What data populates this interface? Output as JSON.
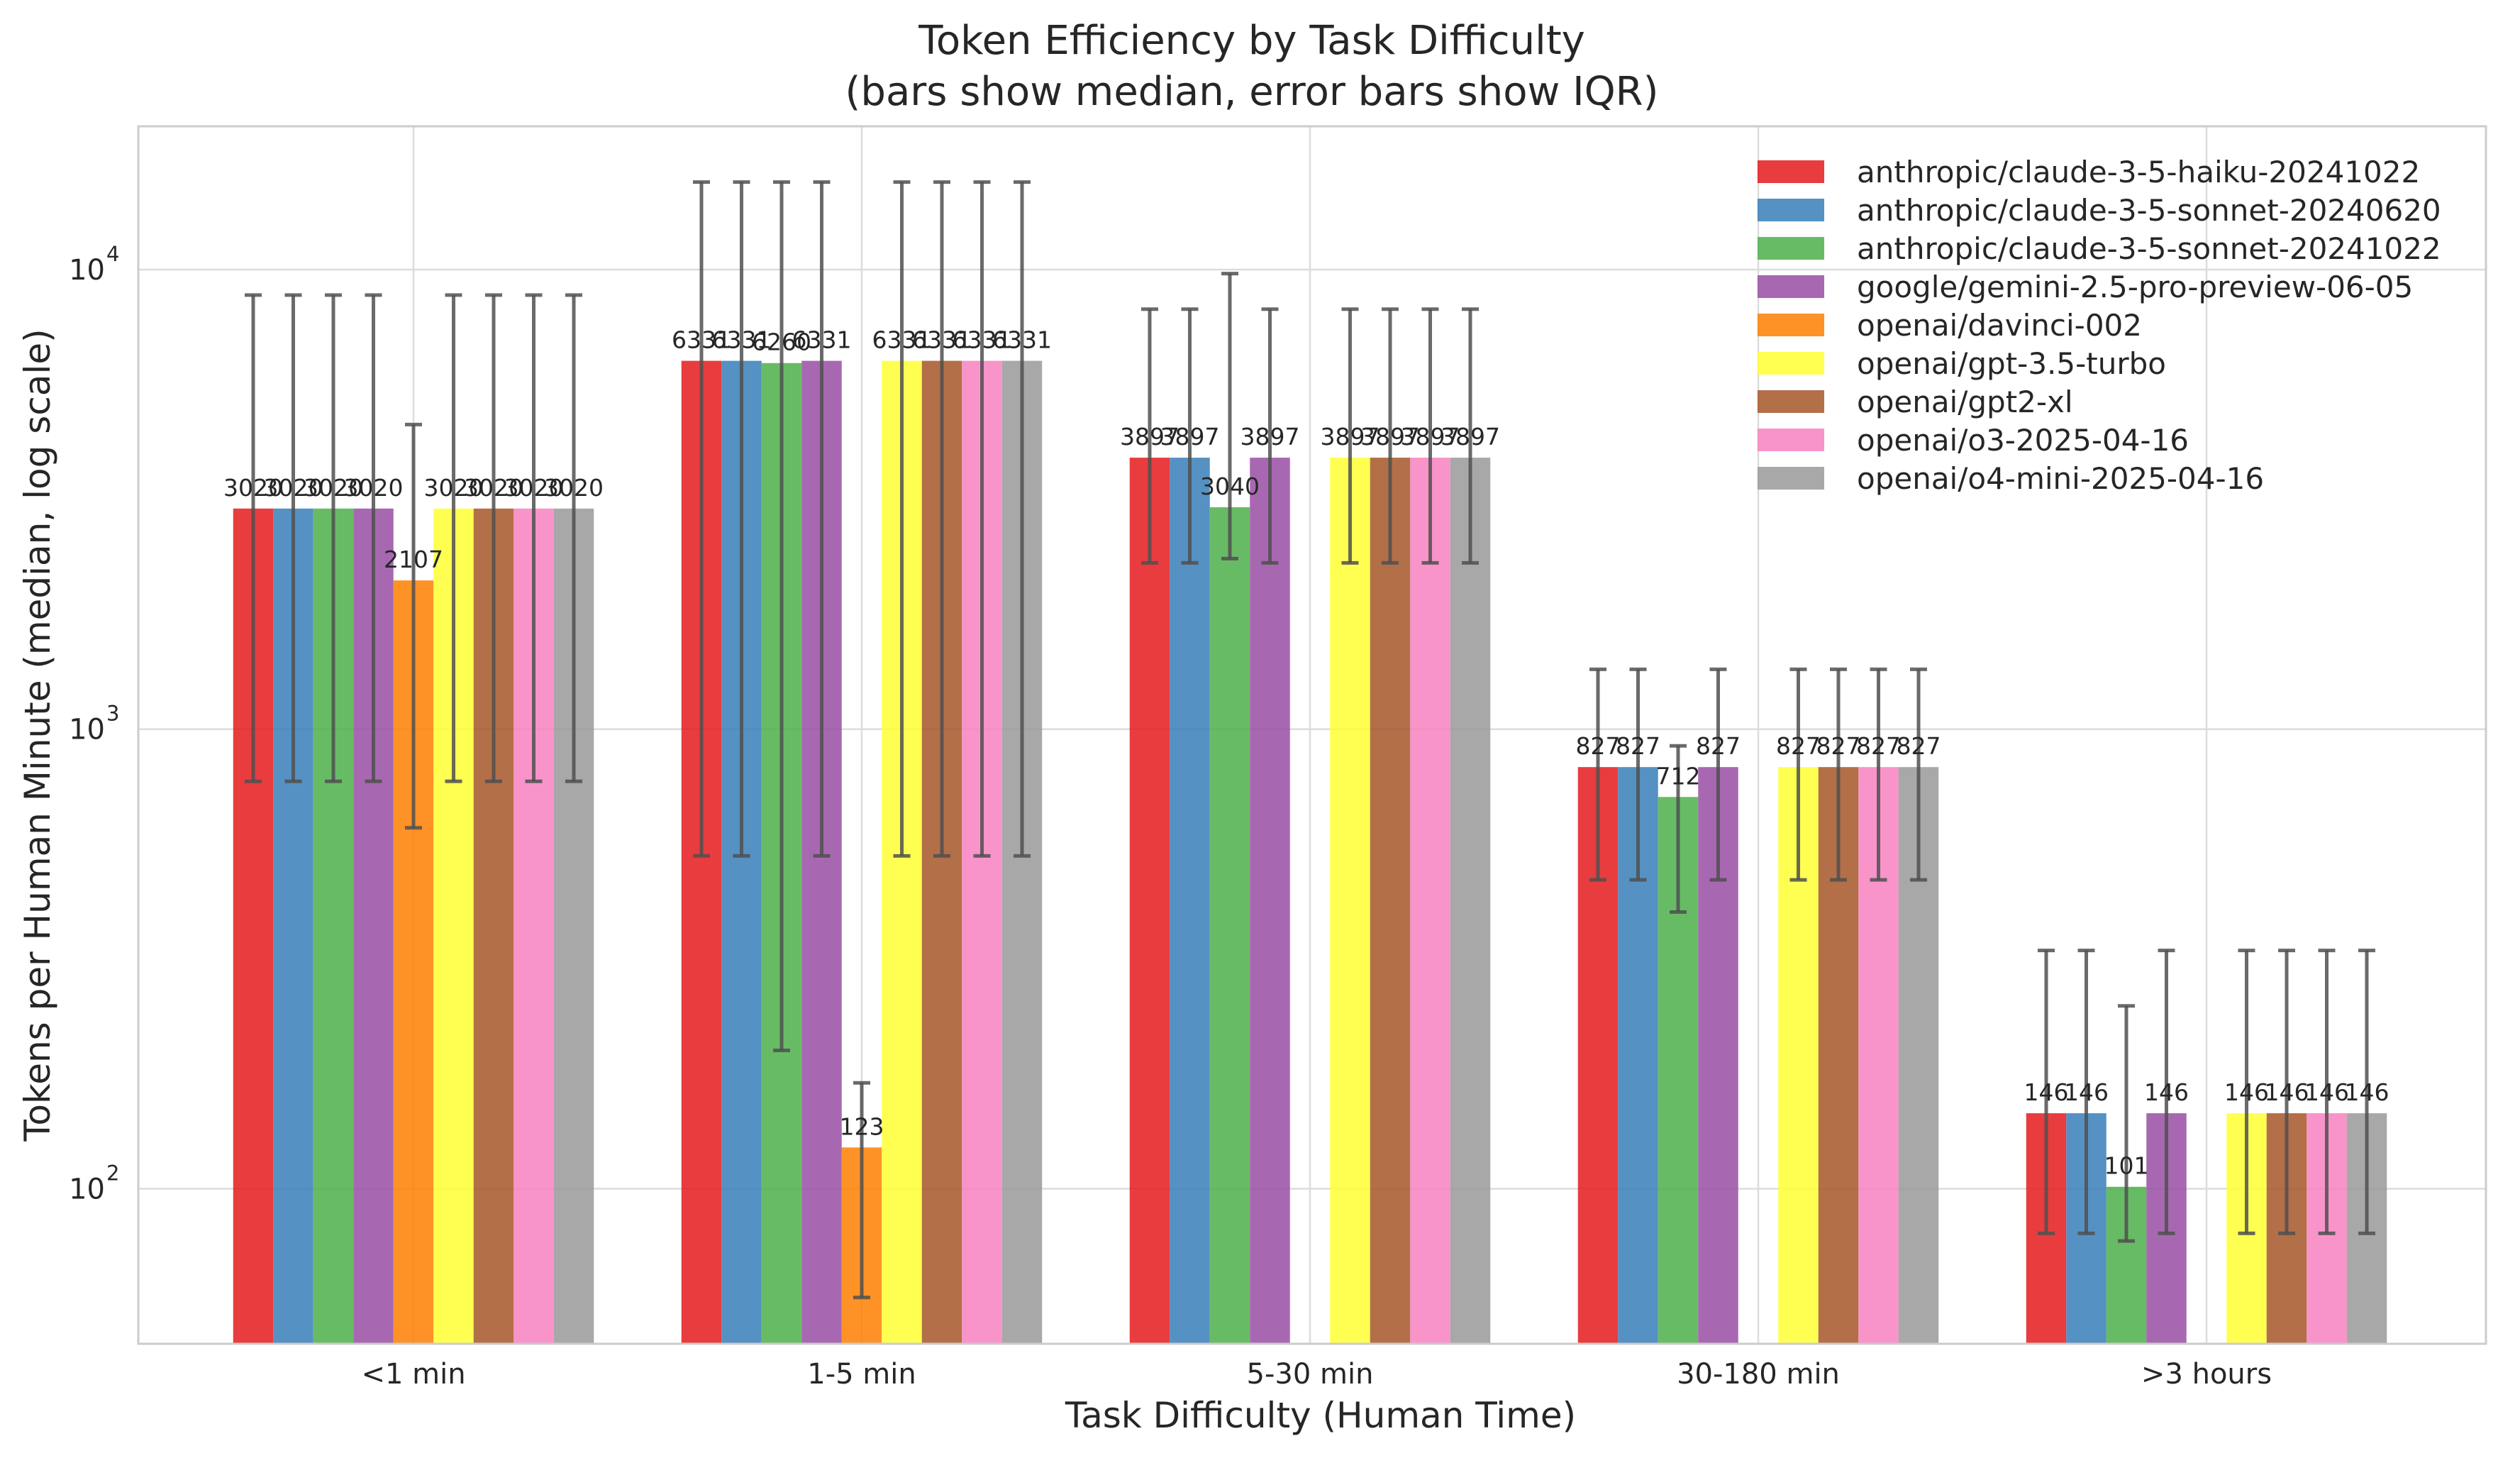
{
  "chart_data": {
    "type": "bar",
    "title": "Token Efficiency by Task Difficulty",
    "subtitle": "(bars show median, error bars show IQR)",
    "xlabel": "Task Difficulty (Human Time)",
    "ylabel": "Tokens per Human Minute (median, log scale)",
    "yscale": "log",
    "ylim": [
      46,
      20500
    ],
    "yticks": [
      {
        "value": 100,
        "base": "10",
        "exp": "2"
      },
      {
        "value": 1000,
        "base": "10",
        "exp": "3"
      },
      {
        "value": 10000,
        "base": "10",
        "exp": "4"
      }
    ],
    "grid": true,
    "legend_position": "top-right",
    "categories": [
      "<1 min",
      "1-5 min",
      "5-30 min",
      "30-180 min",
      ">3 hours"
    ],
    "series": [
      {
        "name": "anthropic/claude-3-5-haiku-20241022",
        "color": "#e41a1c",
        "values": [
          3020,
          6331,
          3897,
          827,
          146
        ],
        "q1": [
          770,
          530,
          2300,
          470,
          80
        ],
        "q3": [
          8800,
          15500,
          8200,
          1350,
          330
        ]
      },
      {
        "name": "anthropic/claude-3-5-sonnet-20240620",
        "color": "#377eb8",
        "values": [
          3020,
          6331,
          3897,
          827,
          146
        ],
        "q1": [
          770,
          530,
          2300,
          470,
          80
        ],
        "q3": [
          8800,
          15500,
          8200,
          1350,
          330
        ]
      },
      {
        "name": "anthropic/claude-3-5-sonnet-20241022",
        "color": "#4daf4a",
        "values": [
          3020,
          6260,
          3040,
          712,
          101
        ],
        "q1": [
          770,
          200,
          2350,
          400,
          77
        ],
        "q3": [
          8800,
          15500,
          9800,
          920,
          250
        ]
      },
      {
        "name": "google/gemini-2.5-pro-preview-06-05",
        "color": "#984ea3",
        "values": [
          3020,
          6331,
          3897,
          827,
          146
        ],
        "q1": [
          770,
          530,
          2300,
          470,
          80
        ],
        "q3": [
          8800,
          15500,
          8200,
          1350,
          330
        ]
      },
      {
        "name": "openai/davinci-002",
        "color": "#ff7f00",
        "values": [
          2107,
          123,
          null,
          null,
          null
        ],
        "q1": [
          610,
          58,
          null,
          null,
          null
        ],
        "q3": [
          4600,
          170,
          null,
          null,
          null
        ]
      },
      {
        "name": "openai/gpt-3.5-turbo",
        "color": "#ffff33",
        "values": [
          3020,
          6331,
          3897,
          827,
          146
        ],
        "q1": [
          770,
          530,
          2300,
          470,
          80
        ],
        "q3": [
          8800,
          15500,
          8200,
          1350,
          330
        ]
      },
      {
        "name": "openai/gpt2-xl",
        "color": "#a65628",
        "values": [
          3020,
          6331,
          3897,
          827,
          146
        ],
        "q1": [
          770,
          530,
          2300,
          470,
          80
        ],
        "q3": [
          8800,
          15500,
          8200,
          1350,
          330
        ]
      },
      {
        "name": "openai/o3-2025-04-16",
        "color": "#f781bf",
        "values": [
          3020,
          6331,
          3897,
          827,
          146
        ],
        "q1": [
          770,
          530,
          2300,
          470,
          80
        ],
        "q3": [
          8800,
          15500,
          8200,
          1350,
          330
        ]
      },
      {
        "name": "openai/o4-mini-2025-04-16",
        "color": "#999999",
        "values": [
          3020,
          6331,
          3897,
          827,
          146
        ],
        "q1": [
          770,
          530,
          2300,
          470,
          80
        ],
        "q3": [
          8800,
          15500,
          8200,
          1350,
          330
        ]
      }
    ]
  }
}
